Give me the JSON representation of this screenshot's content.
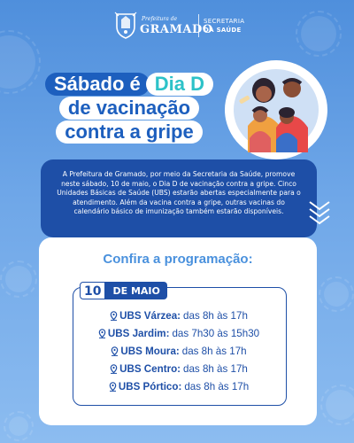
{
  "header": {
    "city_prefix": "Prefeitura de",
    "city_name": "GRAMADO",
    "secretaria_line1": "SECRETARIA",
    "secretaria_line2": "DA SAÚDE"
  },
  "title": {
    "line1_part1": "Sábado é",
    "line1_part2": "Dia D",
    "line2": "de vacinação",
    "line3": "contra a gripe"
  },
  "info": {
    "text": "A Prefeitura de Gramado, por meio da Secretaria da Saúde, promove neste sábado, 10 de maio, o Dia D de vacinação contra a gripe. Cinco Unidades Básicas de Saúde (UBS) estarão abertas especialmente para o atendimento. Além da vacina contra a gripe, outras vacinas do calendário básico de imunização também estarão disponíveis."
  },
  "programme": {
    "title": "Confira a programação:",
    "date_day": "10",
    "date_month": "DE MAIO",
    "units": [
      {
        "name": "UBS Várzea:",
        "hours": "das 8h às 17h"
      },
      {
        "name": "UBS Jardim:",
        "hours": "das 7h30 às 15h30"
      },
      {
        "name": "UBS Moura:",
        "hours": "das 8h às 17h"
      },
      {
        "name": "UBS Centro:",
        "hours": "das 8h às 17h"
      },
      {
        "name": "UBS Pórtico:",
        "hours": "das 8h às 17h"
      }
    ]
  },
  "colors": {
    "background": "#5b98e0",
    "dark_blue": "#1e4fa7",
    "accent_teal": "#2dc2c8",
    "light_blue": "#4a91dd"
  },
  "icons": [
    "gramado-crest-icon",
    "location-pin-icon",
    "chevron-down-icon",
    "virus-icon",
    "family-illustration"
  ]
}
